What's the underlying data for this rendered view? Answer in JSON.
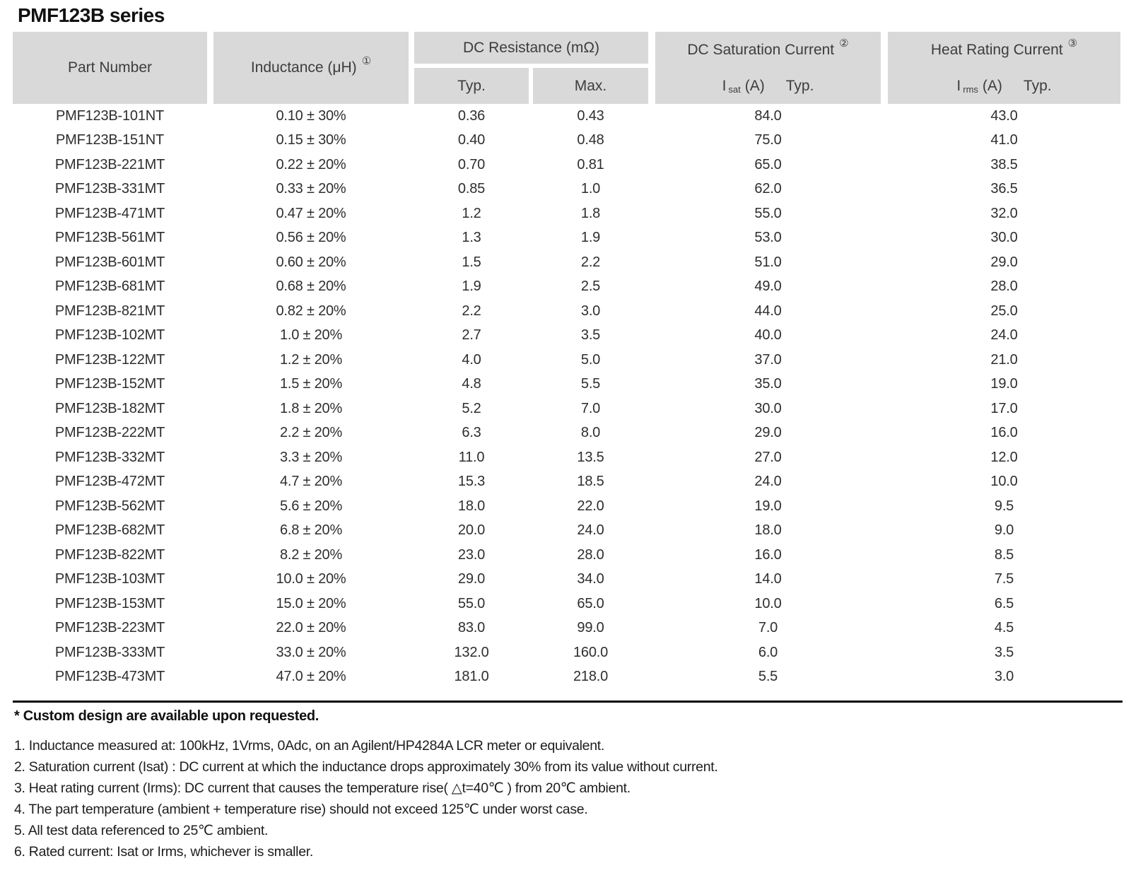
{
  "title": "PMF123B series",
  "colors": {
    "header_bg": "#d9d9d9",
    "rule": "#000000",
    "text": "#262626"
  },
  "table": {
    "header": {
      "part_number": "Part Number",
      "inductance": "Inductance (μH)",
      "inductance_footnote": "①",
      "dc_resistance": "DC Resistance (mΩ)",
      "typ": "Typ.",
      "max": "Max.",
      "dc_saturation": "DC Saturation Current",
      "dc_saturation_footnote": "②",
      "isat_symbol": "I",
      "isat_sub": "sat",
      "isat_unit": "(A)",
      "isat_typ": "Typ.",
      "heat_rating": "Heat Rating Current",
      "heat_rating_footnote": "③",
      "irms_symbol": "I",
      "irms_sub": "rms",
      "irms_unit": "(A)",
      "irms_typ": "Typ."
    },
    "rows": [
      [
        "PMF123B-101NT",
        "0.10 ± 30%",
        "0.36",
        "0.43",
        "84.0",
        "43.0"
      ],
      [
        "PMF123B-151NT",
        "0.15 ± 30%",
        "0.40",
        "0.48",
        "75.0",
        "41.0"
      ],
      [
        "PMF123B-221MT",
        "0.22 ± 20%",
        "0.70",
        "0.81",
        "65.0",
        "38.5"
      ],
      [
        "PMF123B-331MT",
        "0.33 ± 20%",
        "0.85",
        "1.0",
        "62.0",
        "36.5"
      ],
      [
        "PMF123B-471MT",
        "0.47 ± 20%",
        "1.2",
        "1.8",
        "55.0",
        "32.0"
      ],
      [
        "PMF123B-561MT",
        "0.56 ± 20%",
        "1.3",
        "1.9",
        "53.0",
        "30.0"
      ],
      [
        "PMF123B-601MT",
        "0.60 ± 20%",
        "1.5",
        "2.2",
        "51.0",
        "29.0"
      ],
      [
        "PMF123B-681MT",
        "0.68 ± 20%",
        "1.9",
        "2.5",
        "49.0",
        "28.0"
      ],
      [
        "PMF123B-821MT",
        "0.82 ± 20%",
        "2.2",
        "3.0",
        "44.0",
        "25.0"
      ],
      [
        "PMF123B-102MT",
        "1.0 ± 20%",
        "2.7",
        "3.5",
        "40.0",
        "24.0"
      ],
      [
        "PMF123B-122MT",
        "1.2 ± 20%",
        "4.0",
        "5.0",
        "37.0",
        "21.0"
      ],
      [
        "PMF123B-152MT",
        "1.5 ± 20%",
        "4.8",
        "5.5",
        "35.0",
        "19.0"
      ],
      [
        "PMF123B-182MT",
        "1.8 ± 20%",
        "5.2",
        "7.0",
        "30.0",
        "17.0"
      ],
      [
        "PMF123B-222MT",
        "2.2 ± 20%",
        "6.3",
        "8.0",
        "29.0",
        "16.0"
      ],
      [
        "PMF123B-332MT",
        "3.3 ± 20%",
        "11.0",
        "13.5",
        "27.0",
        "12.0"
      ],
      [
        "PMF123B-472MT",
        "4.7 ± 20%",
        "15.3",
        "18.5",
        "24.0",
        "10.0"
      ],
      [
        "PMF123B-562MT",
        "5.6 ± 20%",
        "18.0",
        "22.0",
        "19.0",
        "9.5"
      ],
      [
        "PMF123B-682MT",
        "6.8 ± 20%",
        "20.0",
        "24.0",
        "18.0",
        "9.0"
      ],
      [
        "PMF123B-822MT",
        "8.2 ± 20%",
        "23.0",
        "28.0",
        "16.0",
        "8.5"
      ],
      [
        "PMF123B-103MT",
        "10.0 ± 20%",
        "29.0",
        "34.0",
        "14.0",
        "7.5"
      ],
      [
        "PMF123B-153MT",
        "15.0 ± 20%",
        "55.0",
        "65.0",
        "10.0",
        "6.5"
      ],
      [
        "PMF123B-223MT",
        "22.0 ± 20%",
        "83.0",
        "99.0",
        "7.0",
        "4.5"
      ],
      [
        "PMF123B-333MT",
        "33.0 ± 20%",
        "132.0",
        "160.0",
        "6.0",
        "3.5"
      ],
      [
        "PMF123B-473MT",
        "47.0 ± 20%",
        "181.0",
        "218.0",
        "5.5",
        "3.0"
      ]
    ]
  },
  "footer": {
    "custom_note": "* Custom design are available upon requested.",
    "notes": [
      "1. Inductance measured at: 100kHz, 1Vrms, 0Adc, on an Agilent/HP4284A LCR meter or equivalent.",
      "2. Saturation current (Isat) : DC current at which the inductance drops approximately 30% from its value without current.",
      "3. Heat rating current (Irms): DC current that causes the temperature rise( △t=40℃ ) from 20℃ ambient.",
      "4. The part temperature (ambient + temperature rise) should not exceed 125℃ under worst case.",
      "5. All test data referenced to 25℃ ambient.",
      "6. Rated current: Isat or Irms, whichever is smaller."
    ]
  }
}
